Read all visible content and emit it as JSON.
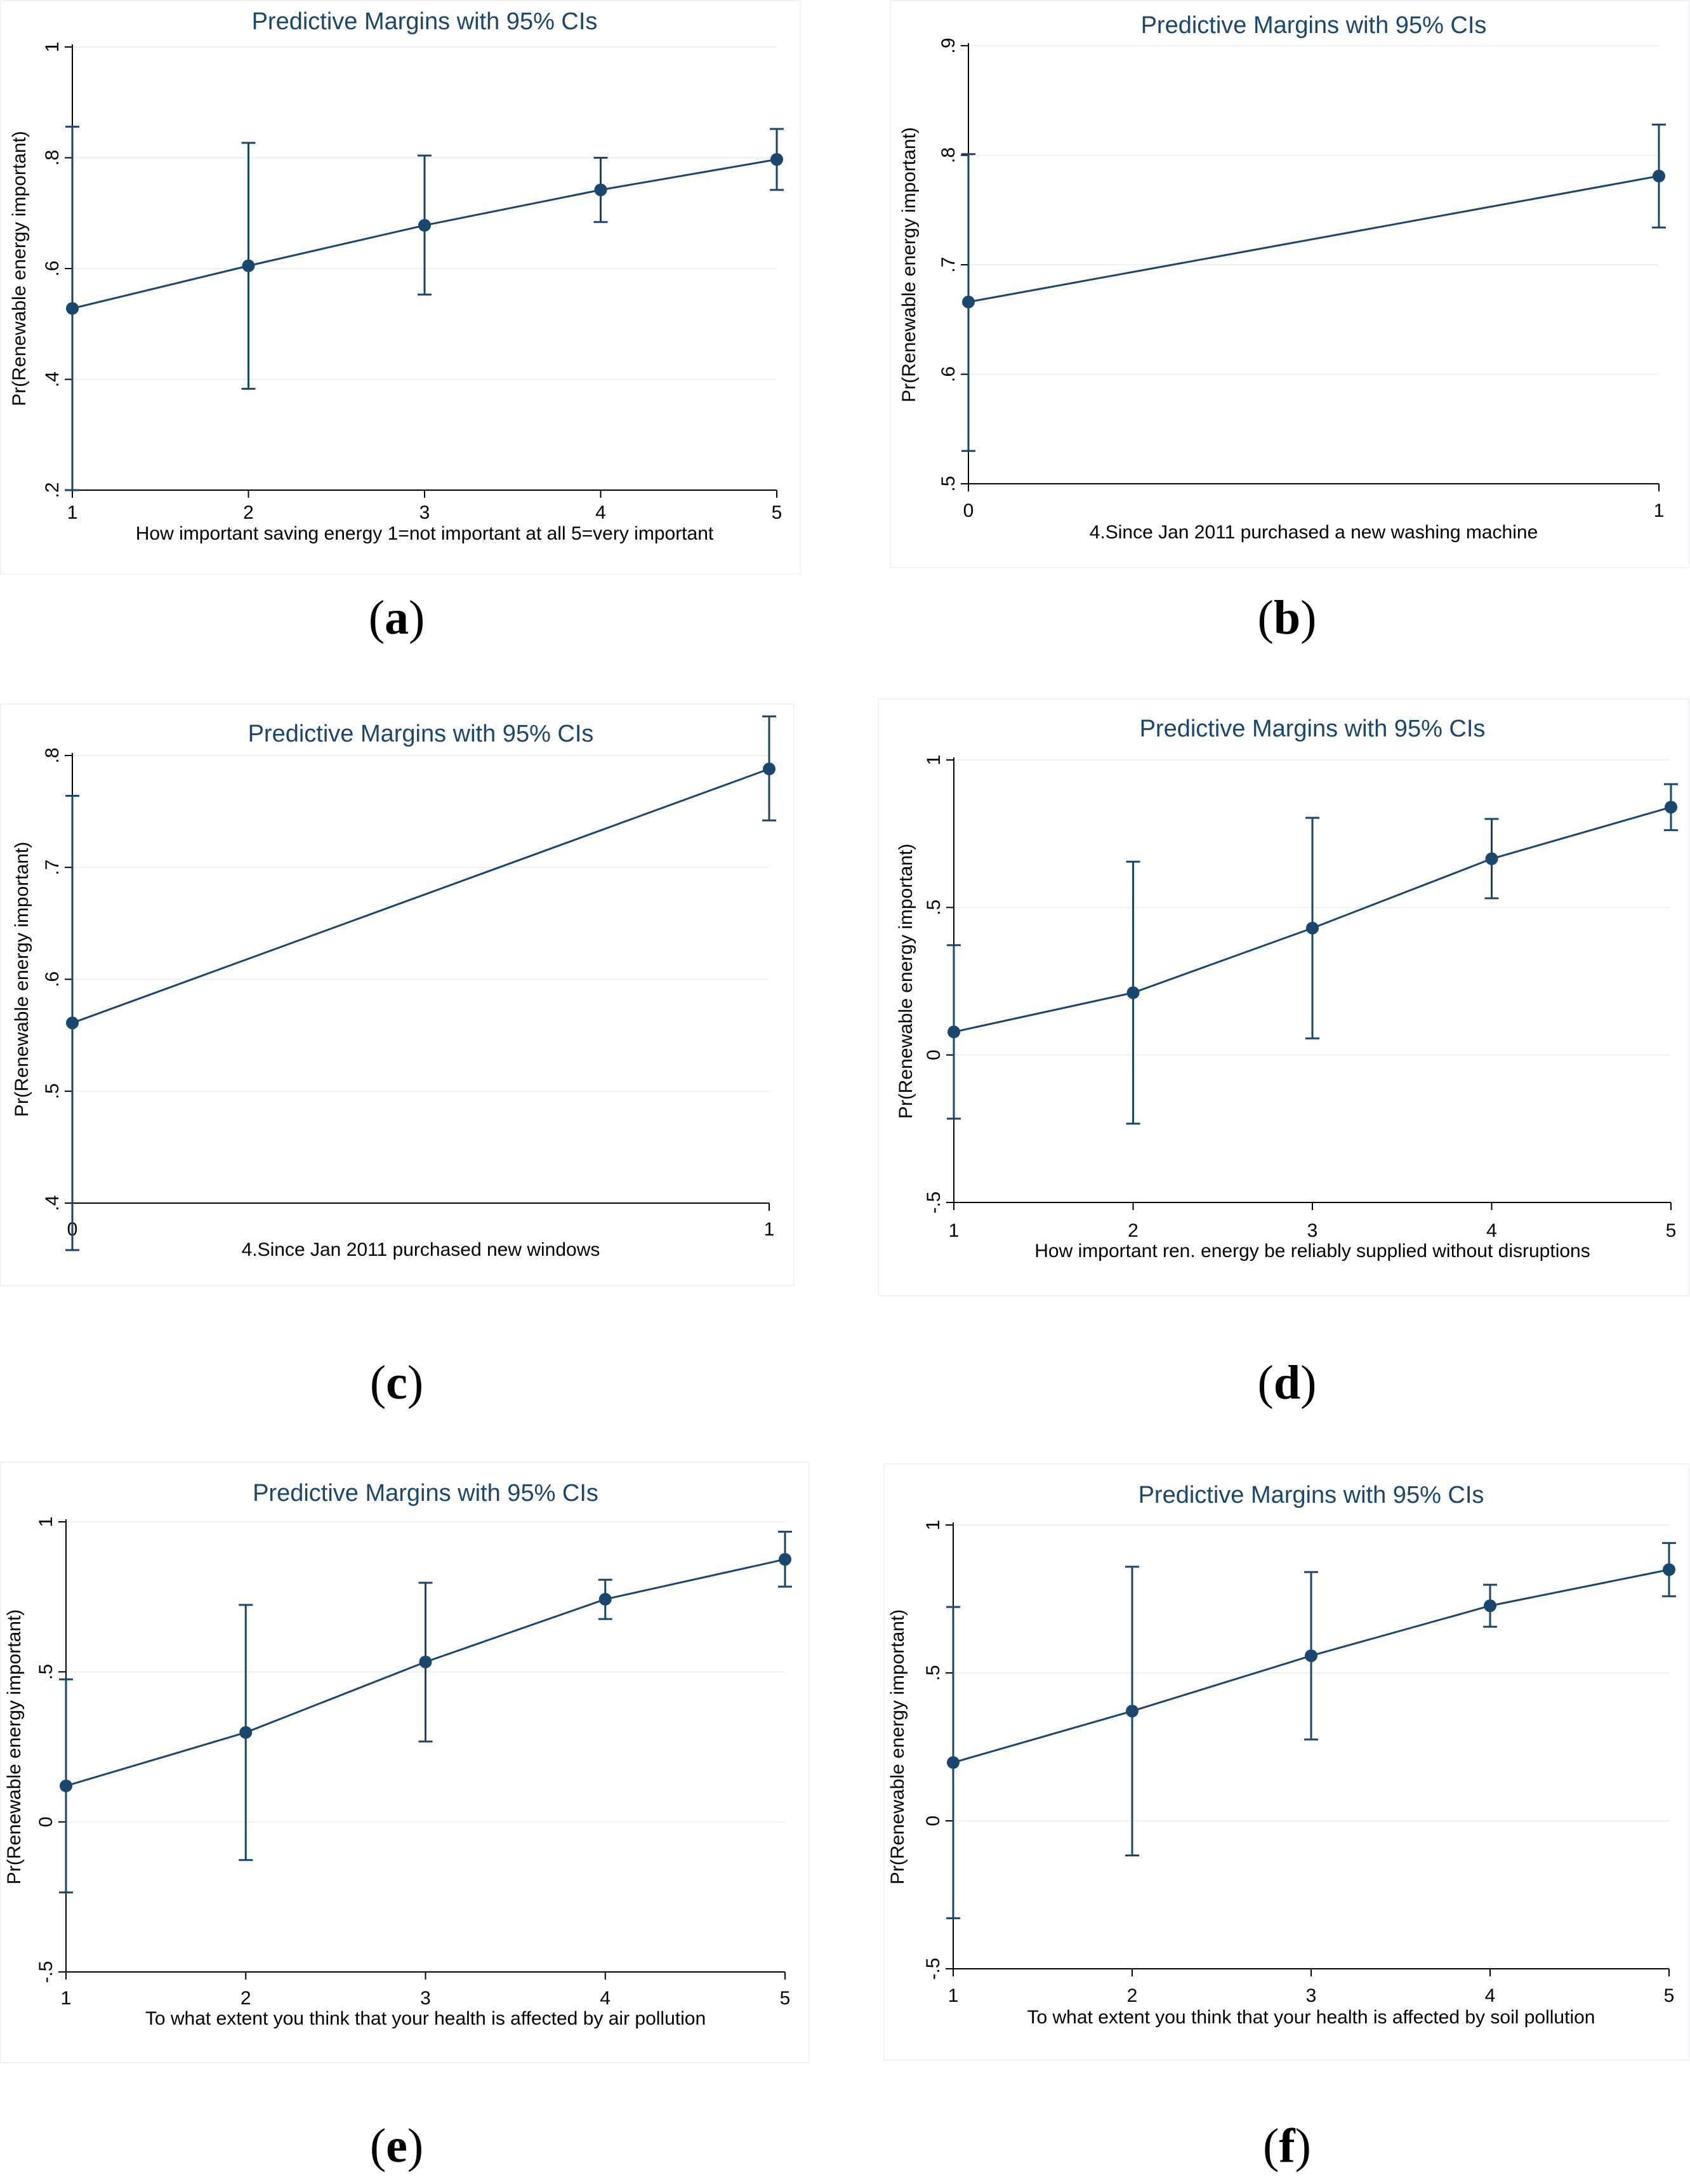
{
  "colors": {
    "series": "#1a476f",
    "title": "#1a476f",
    "grid": "#eaf2f3",
    "axis": "#000000"
  },
  "chart_data": [
    {
      "id": "a",
      "label_letter": "a",
      "type": "line",
      "title": "Predictive Margins with 95% CIs",
      "ylabel": "Pr(Renewable energy important)",
      "xlabel": "How important saving energy 1=not important at all 5=very important",
      "x": [
        1,
        2,
        3,
        4,
        5
      ],
      "values": [
        0.528,
        0.605,
        0.678,
        0.742,
        0.797
      ],
      "ci_low": [
        0.2,
        0.383,
        0.553,
        0.684,
        0.742
      ],
      "ci_high": [
        0.856,
        0.827,
        0.804,
        0.8,
        0.852
      ],
      "ylim": [
        0.2,
        1
      ],
      "xlim": [
        1,
        5
      ],
      "yticks": [
        0.2,
        0.4,
        0.6,
        0.8,
        1
      ],
      "ytick_labels": [
        ".2",
        ".4",
        ".6",
        ".8",
        "1"
      ],
      "xticks": [
        1,
        2,
        3,
        4,
        5
      ],
      "xtick_labels": [
        "1",
        "2",
        "3",
        "4",
        "5"
      ],
      "grid": true
    },
    {
      "id": "b",
      "label_letter": "b",
      "type": "line",
      "title": "Predictive Margins with 95% CIs",
      "ylabel": "Pr(Renewable energy important)",
      "xlabel": "4.Since Jan 2011 purchased a new washing machine",
      "x": [
        0,
        1
      ],
      "values": [
        0.666,
        0.781
      ],
      "ci_low": [
        0.53,
        0.734
      ],
      "ci_high": [
        0.801,
        0.828
      ],
      "ylim": [
        0.5,
        0.9
      ],
      "xlim": [
        0,
        1
      ],
      "yticks": [
        0.5,
        0.6,
        0.7,
        0.8,
        0.9
      ],
      "ytick_labels": [
        ".5",
        ".6",
        ".7",
        ".8",
        ".9"
      ],
      "xticks": [
        0,
        1
      ],
      "xtick_labels": [
        "0",
        "1"
      ],
      "grid": true
    },
    {
      "id": "c",
      "label_letter": "c",
      "type": "line",
      "title": "Predictive Margins with 95% CIs",
      "ylabel": "Pr(Renewable energy important)",
      "xlabel": "4.Since Jan 2011 purchased new windows",
      "x": [
        0,
        1
      ],
      "values": [
        0.561,
        0.788
      ],
      "ci_low": [
        0.358,
        0.742
      ],
      "ci_high": [
        0.764,
        0.835
      ],
      "ylim": [
        0.4,
        0.8
      ],
      "xlim": [
        0,
        1
      ],
      "yticks": [
        0.4,
        0.5,
        0.6,
        0.7,
        0.8
      ],
      "ytick_labels": [
        ".4",
        ".5",
        ".6",
        ".7",
        ".8"
      ],
      "xticks": [
        0,
        1
      ],
      "xtick_labels": [
        "0",
        "1"
      ],
      "grid": true
    },
    {
      "id": "d",
      "label_letter": "d",
      "type": "line",
      "title": "Predictive Margins with 95% CIs",
      "ylabel": "Pr(Renewable energy important)",
      "xlabel": "How important ren. energy be reliably supplied without disruptions",
      "x": [
        1,
        2,
        3,
        4,
        5
      ],
      "values": [
        0.078,
        0.211,
        0.43,
        0.665,
        0.84
      ],
      "ci_low": [
        -0.216,
        -0.233,
        0.056,
        0.531,
        0.762
      ],
      "ci_high": [
        0.372,
        0.655,
        0.804,
        0.8,
        0.918
      ],
      "ylim": [
        -0.5,
        1
      ],
      "xlim": [
        1,
        5
      ],
      "yticks": [
        -0.5,
        0,
        0.5,
        1
      ],
      "ytick_labels": [
        "-.5",
        "0",
        ".5",
        "1"
      ],
      "xticks": [
        1,
        2,
        3,
        4,
        5
      ],
      "xtick_labels": [
        "1",
        "2",
        "3",
        "4",
        "5"
      ],
      "grid": true
    },
    {
      "id": "e",
      "label_letter": "e",
      "type": "line",
      "title": "Predictive Margins with 95% CIs",
      "ylabel": "Pr(Renewable energy important)",
      "xlabel": "To what extent you think that your health is affected by air pollution",
      "x": [
        1,
        2,
        3,
        4,
        5
      ],
      "values": [
        0.12,
        0.298,
        0.533,
        0.742,
        0.875
      ],
      "ci_low": [
        -0.235,
        -0.127,
        0.268,
        0.676,
        0.784
      ],
      "ci_high": [
        0.475,
        0.723,
        0.797,
        0.807,
        0.967
      ],
      "ylim": [
        -0.5,
        1
      ],
      "xlim": [
        1,
        5
      ],
      "yticks": [
        -0.5,
        0,
        0.5,
        1
      ],
      "ytick_labels": [
        "-.5",
        "0",
        ".5",
        "1"
      ],
      "xticks": [
        1,
        2,
        3,
        4,
        5
      ],
      "xtick_labels": [
        "1",
        "2",
        "3",
        "4",
        "5"
      ],
      "grid": true
    },
    {
      "id": "f",
      "label_letter": "f",
      "type": "line",
      "title": "Predictive Margins with 95% CIs",
      "ylabel": "Pr(Renewable energy important)",
      "xlabel": "To what extent you think that your health is affected by soil pollution",
      "x": [
        1,
        2,
        3,
        4,
        5
      ],
      "values": [
        0.197,
        0.371,
        0.558,
        0.727,
        0.849
      ],
      "ci_low": [
        -0.329,
        -0.117,
        0.275,
        0.656,
        0.759
      ],
      "ci_high": [
        0.723,
        0.859,
        0.841,
        0.798,
        0.939
      ],
      "ylim": [
        -0.5,
        1
      ],
      "xlim": [
        1,
        5
      ],
      "yticks": [
        -0.5,
        0,
        0.5,
        1
      ],
      "ytick_labels": [
        "-.5",
        "0",
        ".5",
        "1"
      ],
      "xticks": [
        1,
        2,
        3,
        4,
        5
      ],
      "xtick_labels": [
        "1",
        "2",
        "3",
        "4",
        "5"
      ],
      "grid": true
    }
  ]
}
